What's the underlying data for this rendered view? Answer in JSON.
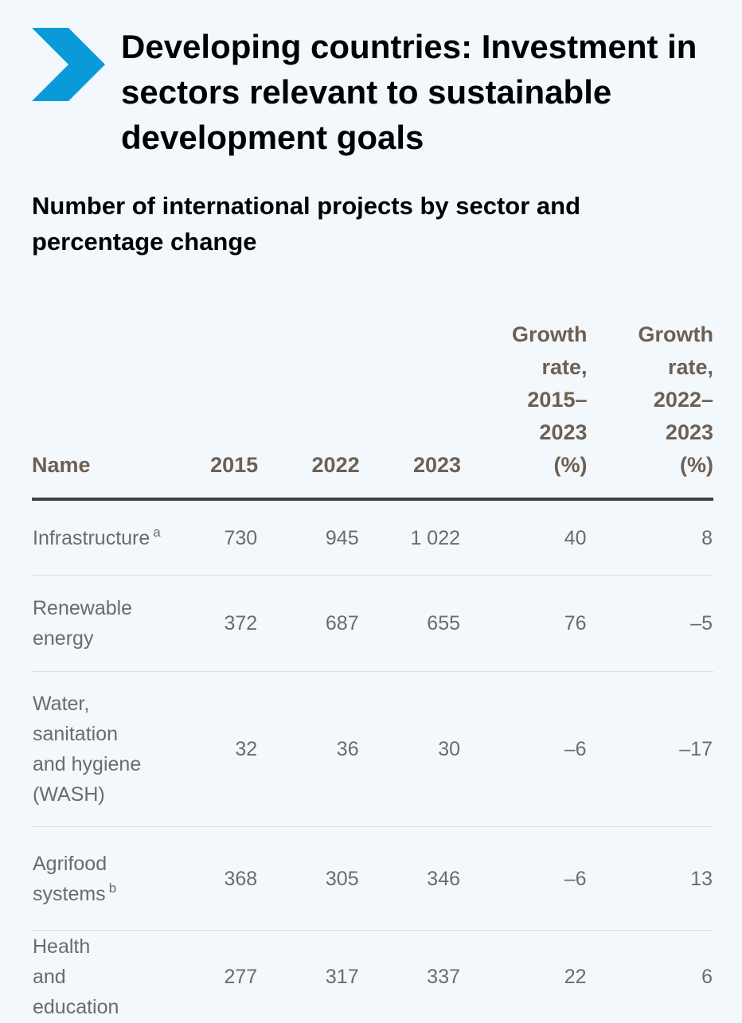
{
  "title": "Developing countries: Investment in sectors relevant to sustainable development goals",
  "subtitle": "Number of international projects by sector and percentage change",
  "colors": {
    "background": "#f3f8fd",
    "chevron": "#0b9ad9",
    "header_text": "#6d6053",
    "cell_text": "#6b6b6b",
    "rule": "#404040"
  },
  "icons": {
    "chevron": "chevron-right-icon"
  },
  "chart_data": {
    "type": "table",
    "columns": [
      "Name",
      "2015",
      "2022",
      "2023",
      "Growth rate, 2015– 2023 (%)",
      "Growth rate, 2022– 2023 (%)"
    ],
    "rows": [
      {
        "name": "Infrastructure",
        "note": "a",
        "y2015": "730",
        "y2022": "945",
        "y2023": "1 022",
        "gr_2015_2023": "40",
        "gr_2022_2023": "8"
      },
      {
        "name": "Renewable energy",
        "note": "",
        "y2015": "372",
        "y2022": "687",
        "y2023": "655",
        "gr_2015_2023": "76",
        "gr_2022_2023": "–5"
      },
      {
        "name": "Water, sanitation and hygiene (WASH)",
        "note": "",
        "y2015": "32",
        "y2022": "36",
        "y2023": "30",
        "gr_2015_2023": "–6",
        "gr_2022_2023": "–17"
      },
      {
        "name": "Agrifood systems",
        "note": "b",
        "y2015": "368",
        "y2022": "305",
        "y2023": "346",
        "gr_2015_2023": "–6",
        "gr_2022_2023": "13"
      },
      {
        "name": "Health and education",
        "note": "",
        "y2015": "277",
        "y2022": "317",
        "y2023": "337",
        "gr_2015_2023": "22",
        "gr_2022_2023": "6"
      }
    ]
  }
}
